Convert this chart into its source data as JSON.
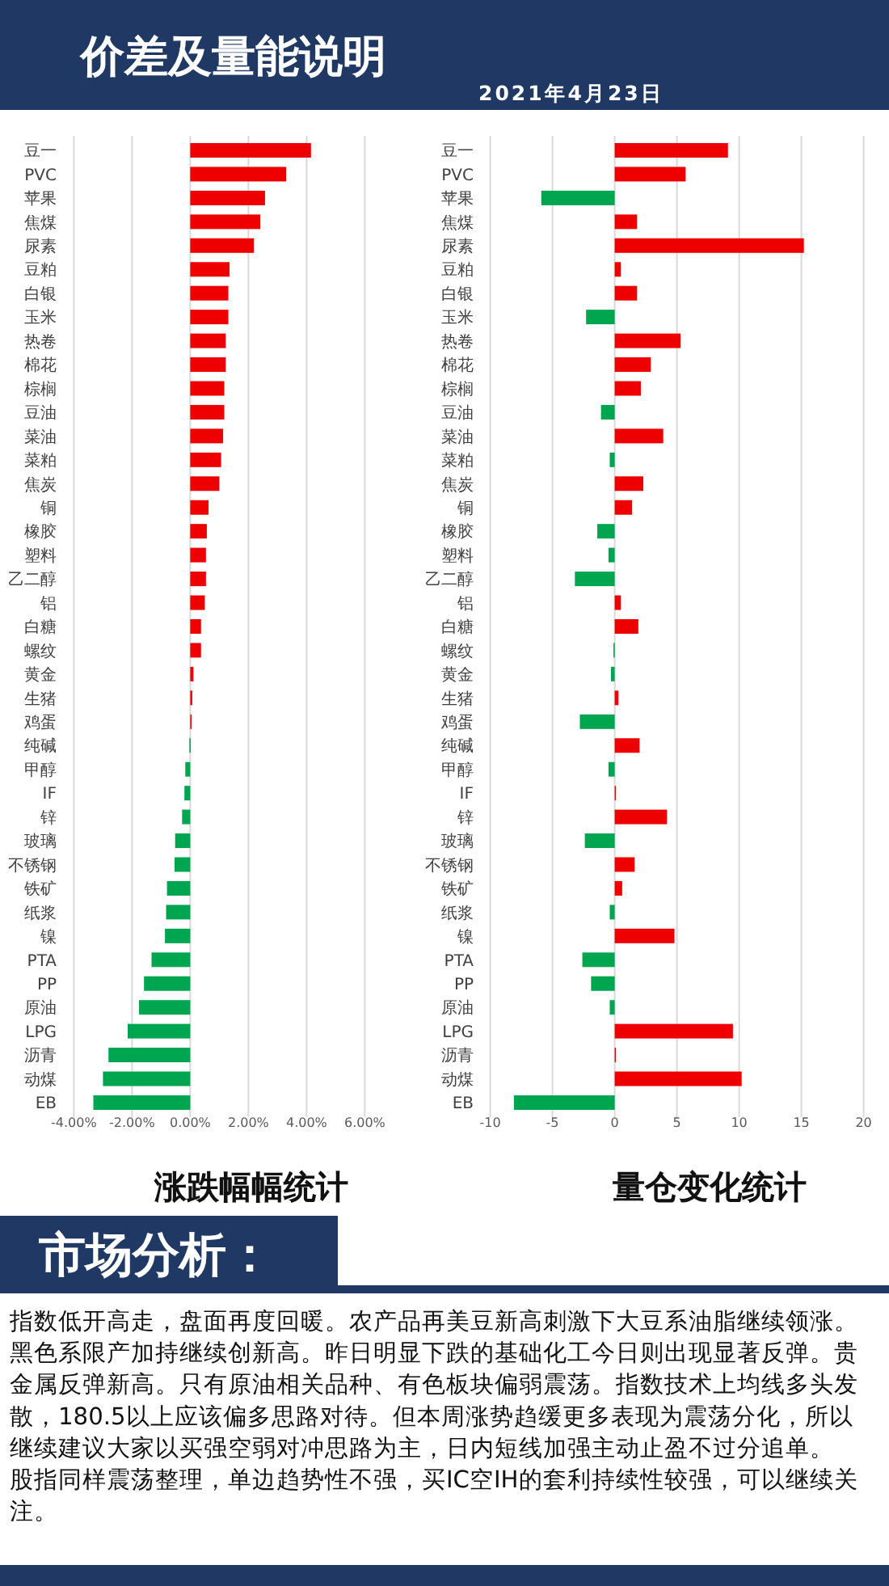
{
  "chart_data": [
    {
      "type": "other",
      "title": "价差及量能说明",
      "subtitle": "2021年4月23日"
    },
    {
      "type": "bar",
      "orientation": "horizontal",
      "title": "涨跌幅幅统计",
      "grid": "x",
      "categories": [
        "豆一",
        "PVC",
        "苹果",
        "焦煤",
        "尿素",
        "豆粕",
        "白银",
        "玉米",
        "热卷",
        "棉花",
        "棕榈",
        "豆油",
        "菜油",
        "菜粕",
        "焦炭",
        "铜",
        "橡胶",
        "塑料",
        "乙二醇",
        "铝",
        "白糖",
        "螺纹",
        "黄金",
        "生猪",
        "鸡蛋",
        "纯碱",
        "甲醇",
        "IF",
        "锌",
        "玻璃",
        "不锈钢",
        "铁矿",
        "纸浆",
        "镍",
        "PTA",
        "PP",
        "原油",
        "LPG",
        "沥青",
        "动煤",
        "EB"
      ],
      "values": [
        4.15,
        3.3,
        2.57,
        2.41,
        2.19,
        1.35,
        1.31,
        1.31,
        1.22,
        1.22,
        1.17,
        1.17,
        1.13,
        1.06,
        1.0,
        0.63,
        0.57,
        0.54,
        0.54,
        0.5,
        0.37,
        0.37,
        0.11,
        0.07,
        0.04,
        -0.03,
        -0.17,
        -0.2,
        -0.28,
        -0.52,
        -0.54,
        -0.8,
        -0.83,
        -0.87,
        -1.33,
        -1.59,
        -1.76,
        -2.15,
        -2.81,
        -3.0,
        -3.33
      ],
      "colors": [
        "#ee0000",
        "#ee0000",
        "#ee0000",
        "#ee0000",
        "#ee0000",
        "#ee0000",
        "#ee0000",
        "#ee0000",
        "#ee0000",
        "#ee0000",
        "#ee0000",
        "#ee0000",
        "#ee0000",
        "#ee0000",
        "#ee0000",
        "#ee0000",
        "#ee0000",
        "#ee0000",
        "#ee0000",
        "#ee0000",
        "#ee0000",
        "#ee0000",
        "#ee0000",
        "#ee0000",
        "#ee0000",
        "#00a550",
        "#00a550",
        "#00a550",
        "#00a550",
        "#00a550",
        "#00a550",
        "#00a550",
        "#00a550",
        "#00a550",
        "#00a550",
        "#00a550",
        "#00a550",
        "#00a550",
        "#00a550",
        "#00a550",
        "#00a550"
      ],
      "xlim": [
        -4,
        6
      ],
      "xticks": [
        {
          "value": -4,
          "label": "-4.00%"
        },
        {
          "value": -2,
          "label": "-2.00%"
        },
        {
          "value": 0,
          "label": "0.00%"
        },
        {
          "value": 2,
          "label": "2.00%"
        },
        {
          "value": 4,
          "label": "4.00%"
        },
        {
          "value": 6,
          "label": "6.00%"
        }
      ]
    },
    {
      "type": "bar",
      "orientation": "horizontal",
      "title": "量仓变化统计",
      "grid": "x",
      "categories": [
        "豆一",
        "PVC",
        "苹果",
        "焦煤",
        "尿素",
        "豆粕",
        "白银",
        "玉米",
        "热卷",
        "棉花",
        "棕榈",
        "豆油",
        "菜油",
        "菜粕",
        "焦炭",
        "铜",
        "橡胶",
        "塑料",
        "乙二醇",
        "铝",
        "白糖",
        "螺纹",
        "黄金",
        "生猪",
        "鸡蛋",
        "纯碱",
        "甲醇",
        "IF",
        "锌",
        "玻璃",
        "不锈钢",
        "铁矿",
        "纸浆",
        "镍",
        "PTA",
        "PP",
        "原油",
        "LPG",
        "沥青",
        "动煤",
        "EB"
      ],
      "values": [
        9.1,
        5.7,
        -5.9,
        1.8,
        15.2,
        0.5,
        1.8,
        -2.3,
        5.3,
        2.9,
        2.1,
        -1.1,
        3.9,
        -0.4,
        2.3,
        1.4,
        -1.4,
        -0.5,
        -3.2,
        0.5,
        1.9,
        -0.1,
        -0.3,
        0.3,
        -2.8,
        2.0,
        -0.5,
        0.1,
        4.2,
        -2.4,
        1.6,
        0.6,
        -0.4,
        4.8,
        -2.6,
        -1.9,
        -0.4,
        9.5,
        0.1,
        10.2,
        -8.1
      ],
      "colors": [
        "#ee0000",
        "#ee0000",
        "#00a550",
        "#ee0000",
        "#ee0000",
        "#ee0000",
        "#ee0000",
        "#00a550",
        "#ee0000",
        "#ee0000",
        "#ee0000",
        "#00a550",
        "#ee0000",
        "#00a550",
        "#ee0000",
        "#ee0000",
        "#00a550",
        "#00a550",
        "#00a550",
        "#ee0000",
        "#ee0000",
        "#00a550",
        "#00a550",
        "#ee0000",
        "#00a550",
        "#ee0000",
        "#00a550",
        "#ee0000",
        "#ee0000",
        "#00a550",
        "#ee0000",
        "#ee0000",
        "#00a550",
        "#ee0000",
        "#00a550",
        "#00a550",
        "#00a550",
        "#ee0000",
        "#ee0000",
        "#ee0000",
        "#00a550"
      ],
      "xlim": [
        -10,
        20
      ],
      "xticks": [
        -10,
        -5,
        0,
        5,
        10,
        15,
        20
      ]
    },
    {
      "type": "other",
      "title": "市场分析：",
      "annotations": [
        "指数低开高走，盘面再度回暖。农产品再美豆新高刺激下大豆系油脂继续领涨。黑色系限产加持继续创新高。昨日明显下跌的基础化工今日则出现显著反弹。贵金属反弹新高。只有原油相关品种、有色板块偏弱震荡。指数技术上均线多头发散，180.5以上应该偏多思路对待。但本周涨势趋缓更多表现为震荡分化，所以继续建议大家以买强空弱对冲思路为主，日内短线加强主动止盈不过分追单。",
        "股指同样震荡整理，单边趋势性不强，买IC空IH的套利持续性较强，可以继续关注。"
      ]
    }
  ]
}
